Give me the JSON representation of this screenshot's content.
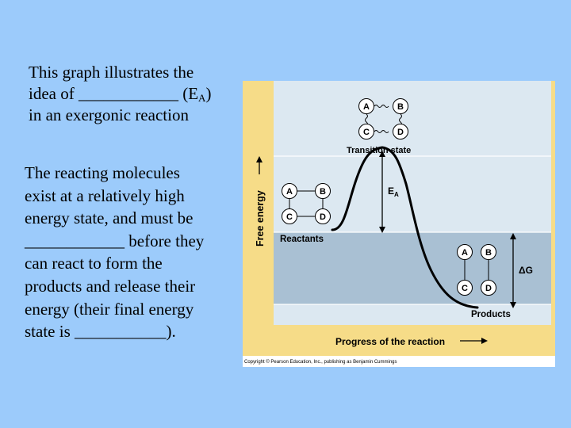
{
  "slide": {
    "paragraph1": {
      "line1": "This graph illustrates the",
      "line2_pre": "idea of ____________ (E",
      "line2_sub": "A",
      "line2_post": ")",
      "line3": "in an exergonic reaction"
    },
    "paragraph2": {
      "lines": [
        "The reacting molecules",
        "exist at a relatively high",
        "energy state, and must be",
        "____________ before they",
        "can react to form the",
        "products and release their",
        "energy (their final energy",
        "state is ___________)."
      ]
    }
  },
  "figure": {
    "y_axis_label": "Free energy",
    "x_axis_label": "Progress of the reaction",
    "transition_state_label": "Transition state",
    "reactants_label": "Reactants",
    "products_label": "Products",
    "ea_label_main": "E",
    "ea_label_sub": "A",
    "delta_g_label": "ΔG",
    "molecule_letters": {
      "a": "A",
      "b": "B",
      "c": "C",
      "d": "D"
    },
    "copyright": "Copyright © Pearson Education, Inc., publishing as Benjamin Cummings",
    "colors": {
      "top_band": "#dce8f1",
      "bottom_band": "#a9c0d3",
      "frame": "#f6dc88",
      "curve": "#000000"
    }
  }
}
